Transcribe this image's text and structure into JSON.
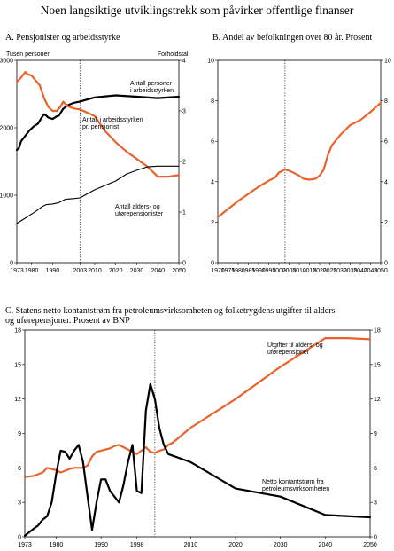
{
  "page": {
    "title": "Noen langsiktige utviklingstrekk som påvirker offentlige finanser"
  },
  "chart_data": [
    {
      "type": "line",
      "panel": "A",
      "title": "A.   Pensjonister og arbeidsstyrke",
      "left_axis_label": "Tusen personer",
      "right_axis_label": "Forholdstall",
      "xlim": [
        1973,
        2050
      ],
      "ylim_left": [
        0,
        3000
      ],
      "ylim_right": [
        0,
        4
      ],
      "x_ticks": [
        "1973",
        "1980",
        "1990",
        "2003",
        "2010",
        "2020",
        "2030",
        "2040",
        "2050"
      ],
      "y_ticks_left": [
        "0",
        "1000",
        "2000",
        "3000"
      ],
      "y_ticks_right": [
        "0",
        "1",
        "2",
        "3",
        "4"
      ],
      "vline": 2003,
      "series": [
        {
          "name": "Antall personer i arbeidsstyrken",
          "axis": "left",
          "color": "#000000",
          "width": 2.2,
          "points": [
            [
              1973,
              1670
            ],
            [
              1974,
              1700
            ],
            [
              1975,
              1800
            ],
            [
              1977,
              1880
            ],
            [
              1979,
              1960
            ],
            [
              1981,
              2020
            ],
            [
              1983,
              2060
            ],
            [
              1985,
              2160
            ],
            [
              1986,
              2200
            ],
            [
              1987,
              2180
            ],
            [
              1988,
              2150
            ],
            [
              1990,
              2130
            ],
            [
              1992,
              2170
            ],
            [
              1993,
              2180
            ],
            [
              1995,
              2280
            ],
            [
              1997,
              2330
            ],
            [
              2000,
              2370
            ],
            [
              2003,
              2390
            ],
            [
              2010,
              2450
            ],
            [
              2020,
              2480
            ],
            [
              2030,
              2460
            ],
            [
              2040,
              2440
            ],
            [
              2050,
              2460
            ]
          ]
        },
        {
          "name": "Antall i arbeidsstyrken pr. pensjonist",
          "axis": "right",
          "color": "#E8622C",
          "width": 2.2,
          "points": [
            [
              1973,
              3.57
            ],
            [
              1975,
              3.66
            ],
            [
              1977,
              3.77
            ],
            [
              1978,
              3.73
            ],
            [
              1980,
              3.7
            ],
            [
              1982,
              3.6
            ],
            [
              1984,
              3.5
            ],
            [
              1986,
              3.25
            ],
            [
              1988,
              3.08
            ],
            [
              1990,
              3.0
            ],
            [
              1992,
              3.0
            ],
            [
              1994,
              3.1
            ],
            [
              1995,
              3.18
            ],
            [
              1997,
              3.1
            ],
            [
              2000,
              3.05
            ],
            [
              2003,
              3.03
            ],
            [
              2010,
              2.9
            ],
            [
              2015,
              2.6
            ],
            [
              2020,
              2.38
            ],
            [
              2025,
              2.2
            ],
            [
              2030,
              2.05
            ],
            [
              2035,
              1.9
            ],
            [
              2040,
              1.7
            ],
            [
              2045,
              1.7
            ],
            [
              2050,
              1.73
            ]
          ]
        },
        {
          "name": "Antall alders- og uførepensjonister",
          "axis": "left",
          "color": "#000000",
          "width": 1.1,
          "points": [
            [
              1973,
              580
            ],
            [
              1976,
              640
            ],
            [
              1979,
              700
            ],
            [
              1982,
              760
            ],
            [
              1985,
              830
            ],
            [
              1987,
              860
            ],
            [
              1990,
              870
            ],
            [
              1993,
              890
            ],
            [
              1996,
              940
            ],
            [
              2000,
              950
            ],
            [
              2003,
              960
            ],
            [
              2010,
              1080
            ],
            [
              2020,
              1210
            ],
            [
              2025,
              1310
            ],
            [
              2030,
              1370
            ],
            [
              2035,
              1420
            ],
            [
              2040,
              1430
            ],
            [
              2045,
              1430
            ],
            [
              2050,
              1430
            ]
          ]
        }
      ],
      "annotations": [
        {
          "text": "Antall personer\ni arbeidsstyrken"
        },
        {
          "text": "Antall i arbeidsstyrken\npr. pensjonist"
        },
        {
          "text": "Antall alders- og\nuførepensjonister"
        }
      ]
    },
    {
      "type": "line",
      "panel": "B",
      "title": "B.   Andel av befolkningen over 80 år. Prosent",
      "xlim": [
        1970,
        2050
      ],
      "ylim": [
        0,
        10
      ],
      "x_ticks": [
        "1970",
        "1975",
        "1980",
        "1985",
        "1990",
        "1995",
        "2000",
        "2005",
        "2010",
        "2015",
        "2020",
        "2025",
        "2030",
        "2035",
        "2040",
        "2045",
        "2050"
      ],
      "y_ticks": [
        "0",
        "2",
        "4",
        "6",
        "8",
        "10"
      ],
      "vline": 2003,
      "series": [
        {
          "name": "",
          "color": "#E8622C",
          "width": 2.2,
          "points": [
            [
              1970,
              2.25
            ],
            [
              1975,
              2.65
            ],
            [
              1980,
              3.05
            ],
            [
              1985,
              3.4
            ],
            [
              1990,
              3.75
            ],
            [
              1995,
              4.05
            ],
            [
              1998,
              4.2
            ],
            [
              2000,
              4.45
            ],
            [
              2003,
              4.6
            ],
            [
              2005,
              4.55
            ],
            [
              2008,
              4.4
            ],
            [
              2010,
              4.3
            ],
            [
              2012,
              4.15
            ],
            [
              2015,
              4.1
            ],
            [
              2018,
              4.15
            ],
            [
              2020,
              4.3
            ],
            [
              2022,
              4.6
            ],
            [
              2024,
              5.3
            ],
            [
              2026,
              5.8
            ],
            [
              2028,
              6.05
            ],
            [
              2030,
              6.3
            ],
            [
              2035,
              6.8
            ],
            [
              2040,
              7.05
            ],
            [
              2045,
              7.45
            ],
            [
              2050,
              7.9
            ]
          ]
        }
      ]
    },
    {
      "type": "line",
      "panel": "C",
      "title": "C.   Statens netto kontantstrøm fra petroleumsvirksomheten og folketrygdens utgifter til alders- og uførepensjoner. Prosent av BNP",
      "xlim": [
        1973,
        2050
      ],
      "ylim": [
        0,
        18
      ],
      "x_ticks": [
        "1973",
        "1980",
        "1990",
        "1998",
        "2010",
        "2020",
        "2030",
        "2040",
        "2050"
      ],
      "y_ticks": [
        "0",
        "3",
        "6",
        "9",
        "12",
        "15",
        "18"
      ],
      "vline": 2002,
      "series": [
        {
          "name": "Utgifter til alders- og uførepensjoner",
          "color": "#E8622C",
          "width": 2.2,
          "points": [
            [
              1973,
              5.2
            ],
            [
              1975,
              5.3
            ],
            [
              1977,
              5.6
            ],
            [
              1978,
              6.0
            ],
            [
              1980,
              5.8
            ],
            [
              1981,
              5.6
            ],
            [
              1983,
              5.9
            ],
            [
              1984,
              6.0
            ],
            [
              1986,
              6.0
            ],
            [
              1987,
              6.2
            ],
            [
              1988,
              7.0
            ],
            [
              1989,
              7.4
            ],
            [
              1990,
              7.5
            ],
            [
              1992,
              7.7
            ],
            [
              1993,
              7.9
            ],
            [
              1994,
              8.0
            ],
            [
              1996,
              7.6
            ],
            [
              1998,
              7.2
            ],
            [
              1999,
              7.5
            ],
            [
              2000,
              7.8
            ],
            [
              2001,
              7.4
            ],
            [
              2002,
              7.3
            ],
            [
              2003,
              7.5
            ],
            [
              2004,
              7.6
            ],
            [
              2005,
              8.0
            ],
            [
              2006,
              8.2
            ],
            [
              2010,
              9.5
            ],
            [
              2020,
              12.0
            ],
            [
              2030,
              14.8
            ],
            [
              2040,
              17.3
            ],
            [
              2045,
              17.3
            ],
            [
              2050,
              17.2
            ]
          ]
        },
        {
          "name": "Netto kontantstrøm fra petroleumsvirksomheten",
          "color": "#000000",
          "width": 2.2,
          "points": [
            [
              1973,
              0.1
            ],
            [
              1974,
              0.4
            ],
            [
              1975,
              0.7
            ],
            [
              1976,
              1.0
            ],
            [
              1977,
              1.5
            ],
            [
              1978,
              1.8
            ],
            [
              1979,
              3.0
            ],
            [
              1980,
              5.5
            ],
            [
              1981,
              7.5
            ],
            [
              1982,
              7.4
            ],
            [
              1983,
              6.8
            ],
            [
              1984,
              7.5
            ],
            [
              1985,
              8.0
            ],
            [
              1986,
              6.5
            ],
            [
              1987,
              3.5
            ],
            [
              1988,
              0.6
            ],
            [
              1989,
              3.0
            ],
            [
              1990,
              5.0
            ],
            [
              1991,
              5.0
            ],
            [
              1992,
              4.0
            ],
            [
              1993,
              3.5
            ],
            [
              1994,
              3.0
            ],
            [
              1995,
              4.5
            ],
            [
              1996,
              6.5
            ],
            [
              1997,
              8.0
            ],
            [
              1998,
              4.0
            ],
            [
              1999,
              3.8
            ],
            [
              2000,
              11.0
            ],
            [
              2001,
              13.3
            ],
            [
              2002,
              12.0
            ],
            [
              2003,
              9.5
            ],
            [
              2004,
              8.0
            ],
            [
              2005,
              7.2
            ],
            [
              2010,
              6.5
            ],
            [
              2020,
              4.2
            ],
            [
              2030,
              3.5
            ],
            [
              2040,
              1.9
            ],
            [
              2050,
              1.7
            ]
          ]
        }
      ],
      "annotations": [
        {
          "text": "Utgifter til alders- og\nuførepensjoner"
        },
        {
          "text": "Netto kontantstrøm fra\npetroleumsvirksomheten"
        }
      ]
    }
  ]
}
